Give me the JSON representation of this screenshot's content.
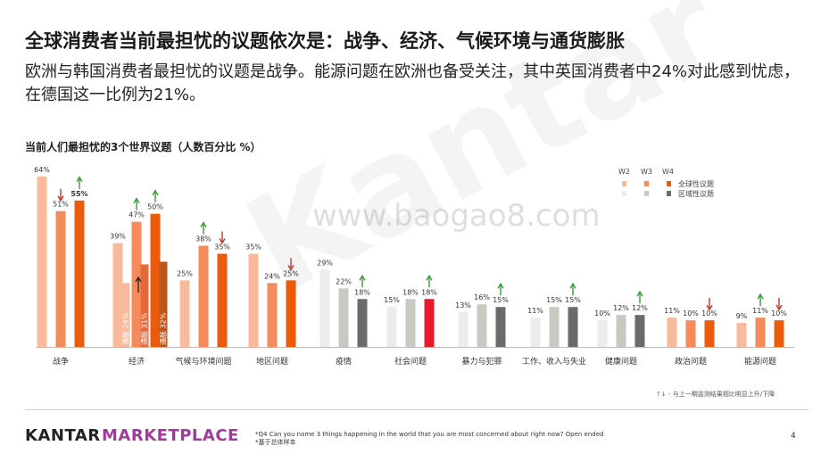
{
  "header": {
    "title": "全球消费者当前最担忧的议题依次是：战争、经济、气候环境与通货膨胀",
    "subtitle": "欧洲与韩国消费者最担忧的议题是战争。能源问题在欧洲也备受关注，其中英国消费者中24%对此感到忧虑，在德国这一比例为21%。"
  },
  "watermark": "www.baogao8.com",
  "watermark_big": "Kantar",
  "legend": {
    "waves": [
      "W2",
      "W3",
      "W4"
    ],
    "global_label": "全球性议题",
    "regional_label": "区域性议题",
    "colors": {
      "global_w2": "#f9b99b",
      "global_w3": "#f58a5c",
      "global_w4": "#ec5a0c",
      "regional_w2": "#ececec",
      "regional_w3": "#c9c9c2",
      "regional_w4": "#6b6b6b"
    }
  },
  "arrow_legend": "- 与上一期监测结果相比明显上升/下降",
  "footer": {
    "brand_part1": "KANTAR",
    "brand_part2": "MARKETPLACE",
    "note_line1": "*Q4 Can you name 3 things happening in the world that you are most concerned about right now? Open ended",
    "note_line2": "*基于总体样本",
    "page": "4"
  },
  "chart_data": {
    "type": "bar",
    "title": "当前人们最担忧的3个世界议题（人数百分比 %）",
    "xlabel": "",
    "ylabel": "",
    "ylim": [
      0,
      70
    ],
    "categories": [
      "战争",
      "经济",
      "气候与环境问题",
      "地区问题",
      "疫情",
      "社会问题",
      "暴力与犯罪",
      "工作、收入与失业",
      "健康问题",
      "政治问题",
      "能源问题"
    ],
    "series": [
      {
        "name": "W2",
        "values": [
          64,
          39,
          25,
          35,
          29,
          15,
          13,
          11,
          10,
          11,
          9
        ]
      },
      {
        "name": "W3",
        "values": [
          51,
          47,
          38,
          24,
          22,
          18,
          16,
          15,
          12,
          10,
          11
        ]
      },
      {
        "name": "W4",
        "values": [
          55,
          50,
          35,
          25,
          18,
          18,
          15,
          15,
          12,
          10,
          10
        ]
      }
    ],
    "highlighted_labels": [
      null,
      null,
      null,
      null,
      null,
      null,
      null,
      null,
      null,
      null,
      null
    ],
    "issue_type": [
      "global",
      "global",
      "global",
      "global",
      "regional",
      "special",
      "regional",
      "regional",
      "regional",
      "global",
      "global"
    ],
    "inflation_sub": {
      "name": "通胀",
      "values": [
        24,
        31,
        32
      ],
      "labels": [
        "通胀 24%",
        "通胀 31%",
        "通胀 32%"
      ]
    },
    "change_arrows": [
      [
        null,
        "down",
        "up"
      ],
      [
        null,
        "up",
        "up"
      ],
      [
        null,
        "up",
        "down"
      ],
      [
        null,
        null,
        "down"
      ],
      [
        null,
        null,
        "up"
      ],
      [
        null,
        null,
        "up"
      ],
      [
        null,
        null,
        "up"
      ],
      [
        null,
        null,
        "up"
      ],
      [
        null,
        null,
        "up"
      ],
      [
        null,
        null,
        "down"
      ],
      [
        null,
        "up",
        "down"
      ]
    ]
  }
}
